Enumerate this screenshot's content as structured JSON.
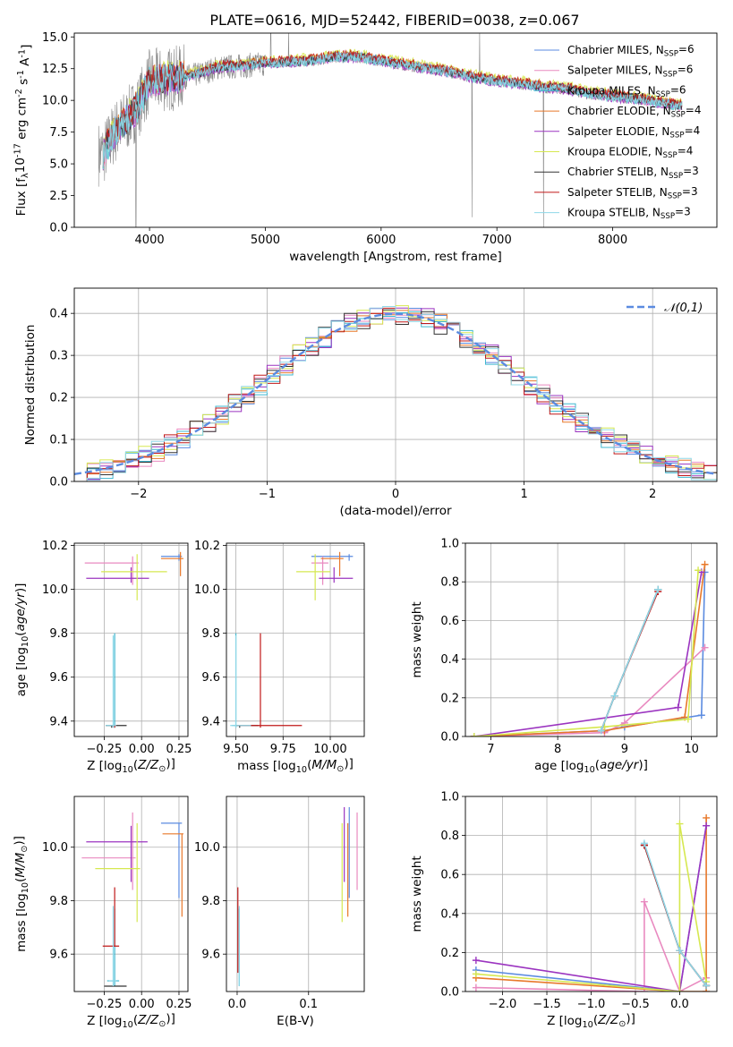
{
  "title": "PLATE=0616, MJD=52442, FIBERID=0038, z=0.067",
  "models": [
    {
      "name": "Chabrier MILES, N$_{SSP}$=6",
      "color": "#5b8be0"
    },
    {
      "name": "Salpeter MILES, N$_{SSP}$=6",
      "color": "#e98ac0"
    },
    {
      "name": "Kroupa MILES, N$_{SSP}$=6",
      "color": "#3fb8d0"
    },
    {
      "name": "Chabrier ELODIE, N$_{SSP}$=4",
      "color": "#e8782a"
    },
    {
      "name": "Salpeter ELODIE, N$_{SSP}$=4",
      "color": "#9b34c0"
    },
    {
      "name": "Kroupa ELODIE, N$_{SSP}$=4",
      "color": "#d6e850"
    },
    {
      "name": "Chabrier STELIB, N$_{SSP}$=3",
      "color": "#333333"
    },
    {
      "name": "Salpeter STELIB, N$_{SSP}$=3",
      "color": "#c01818"
    },
    {
      "name": "Kroupa STELIB, N$_{SSP}$=3",
      "color": "#8fd8e8"
    }
  ],
  "chart_data": [
    {
      "type": "line",
      "xlabel": "wavelength [Angstrom, rest frame]",
      "ylabel": "Flux [f$_\\lambda$10$^{-17}$ erg cm$^{-2}$ s$^{-1}$ A$^{-1}$]",
      "xlim": [
        3350,
        8900
      ],
      "ylim": [
        0,
        15.3
      ],
      "xticks": [
        4000,
        5000,
        6000,
        7000,
        8000
      ],
      "yticks": [
        0.0,
        2.5,
        5.0,
        7.5,
        10.0,
        12.5,
        15.0
      ],
      "legend": "top-right",
      "data_color": "#888888",
      "model_color": "#6cd4d8",
      "continuum_x": [
        3600,
        3700,
        3800,
        3900,
        4000,
        4200,
        4400,
        4600,
        4800,
        5000,
        5200,
        5400,
        5600,
        5800,
        6000,
        6200,
        6400,
        6600,
        6800,
        7000,
        7200,
        7400,
        7600,
        7800,
        8000,
        8200,
        8400,
        8600
      ],
      "continuum_y": [
        5.8,
        7.5,
        8.4,
        9.5,
        11.5,
        11.7,
        12.0,
        12.6,
        12.7,
        12.9,
        13.0,
        13.1,
        13.4,
        13.4,
        13.1,
        12.8,
        12.5,
        12.2,
        11.8,
        11.5,
        11.3,
        11.0,
        10.9,
        10.5,
        10.3,
        10.1,
        9.8,
        9.5
      ]
    },
    {
      "type": "line",
      "xlabel": "(data-model)/error",
      "ylabel": "Normed distribution",
      "xlim": [
        -2.5,
        2.5
      ],
      "ylim": [
        0,
        0.46
      ],
      "xticks": [
        -2,
        -1,
        0,
        1,
        2
      ],
      "yticks": [
        0.0,
        0.1,
        0.2,
        0.3,
        0.4
      ],
      "legend": "top-right",
      "legend_label": "$\\mathcal{N}(0,1)$",
      "bin_width": 0.1,
      "hist_color_order": [
        0,
        1,
        2,
        3,
        4,
        5,
        6,
        7,
        8
      ],
      "reference": "N(0,1) dashed"
    },
    {
      "type": "scatter",
      "xlabel": "Z [log$_{10}$($Z/Z_\\odot$)]",
      "ylabel": "age  [log$_{10}$($age/yr$)]",
      "xlim": [
        -0.45,
        0.31
      ],
      "ylim": [
        9.33,
        10.21
      ],
      "xticks": [
        -0.25,
        0.0,
        0.25
      ],
      "xticklabels": [
        "−0.25",
        "0.00",
        "0.25"
      ],
      "yticks": [
        9.4,
        9.6,
        9.8,
        10.0,
        10.2
      ],
      "points": [
        {
          "m": 0,
          "x": 0.25,
          "y": 10.15,
          "xerr": [
            0.12,
            0.02
          ],
          "yerr": [
            0.02,
            0.01
          ]
        },
        {
          "m": 1,
          "x": -0.06,
          "y": 10.12,
          "xerr": [
            0.32,
            0.04
          ],
          "yerr": [
            0.1,
            0.03
          ]
        },
        {
          "m": 2,
          "x": -0.18,
          "y": 9.38,
          "xerr": [
            0.02,
            0.01
          ],
          "yerr": [
            0.01,
            0.42
          ]
        },
        {
          "m": 3,
          "x": 0.26,
          "y": 10.14,
          "xerr": [
            0.13,
            0.02
          ],
          "yerr": [
            0.08,
            0.03
          ]
        },
        {
          "m": 4,
          "x": -0.07,
          "y": 10.05,
          "xerr": [
            0.3,
            0.12
          ],
          "yerr": [
            0.02,
            0.05
          ]
        },
        {
          "m": 5,
          "x": -0.03,
          "y": 10.08,
          "xerr": [
            0.24,
            0.2
          ],
          "yerr": [
            0.13,
            0.08
          ]
        },
        {
          "m": 6,
          "x": -0.2,
          "y": 9.38,
          "xerr": [
            0.04,
            0.1
          ],
          "yerr": [
            0.01,
            0.0
          ]
        },
        {
          "m": 7,
          "x": -0.18,
          "y": 9.38,
          "xerr": [
            0.02,
            0.01
          ],
          "yerr": [
            0.01,
            0.0
          ]
        },
        {
          "m": 8,
          "x": -0.19,
          "y": 9.38,
          "xerr": [
            0.05,
            0.02
          ],
          "yerr": [
            0.01,
            0.41
          ]
        }
      ]
    },
    {
      "type": "scatter",
      "xlabel": "mass [log$_{10}$($M/M_\\odot$)]",
      "ylabel": "",
      "xlim": [
        9.45,
        10.18
      ],
      "ylim": [
        9.33,
        10.21
      ],
      "xticks": [
        9.5,
        9.75,
        10.0
      ],
      "xticklabels": [
        "9.50",
        "9.75",
        "10.00"
      ],
      "yticks": [
        9.4,
        9.6,
        9.8,
        10.0,
        10.2
      ],
      "points": [
        {
          "m": 0,
          "x": 10.1,
          "y": 10.15,
          "xerr": [
            0.2,
            0.02
          ],
          "yerr": [
            0.02,
            0.01
          ]
        },
        {
          "m": 1,
          "x": 9.96,
          "y": 10.12,
          "xerr": [
            0.06,
            0.03
          ],
          "yerr": [
            0.1,
            0.03
          ]
        },
        {
          "m": 2,
          "x": 9.5,
          "y": 9.38,
          "xerr": [
            0.02,
            0.01
          ],
          "yerr": [
            0.01,
            0.42
          ]
        },
        {
          "m": 3,
          "x": 10.05,
          "y": 10.14,
          "xerr": [
            0.1,
            0.02
          ],
          "yerr": [
            0.08,
            0.03
          ]
        },
        {
          "m": 4,
          "x": 10.02,
          "y": 10.05,
          "xerr": [
            0.08,
            0.1
          ],
          "yerr": [
            0.02,
            0.05
          ]
        },
        {
          "m": 5,
          "x": 9.92,
          "y": 10.08,
          "xerr": [
            0.1,
            0.08
          ],
          "yerr": [
            0.13,
            0.08
          ]
        },
        {
          "m": 6,
          "x": 9.52,
          "y": 9.38,
          "xerr": [
            0.02,
            0.1
          ],
          "yerr": [
            0.01,
            0.0
          ]
        },
        {
          "m": 7,
          "x": 9.63,
          "y": 9.38,
          "xerr": [
            0.13,
            0.22
          ],
          "yerr": [
            0.01,
            0.42
          ]
        },
        {
          "m": 8,
          "x": 9.5,
          "y": 9.38,
          "xerr": [
            0.03,
            0.08
          ],
          "yerr": [
            0.01,
            0.41
          ]
        }
      ]
    },
    {
      "type": "line",
      "xlabel": "age  [log$_{10}$($age/yr$)]",
      "ylabel": "mass weight",
      "xlim": [
        6.62,
        10.38
      ],
      "ylim": [
        0,
        1.0
      ],
      "xticks": [
        7,
        8,
        9,
        10
      ],
      "yticks": [
        0.0,
        0.2,
        0.4,
        0.6,
        0.8,
        1.0
      ],
      "series": [
        {
          "m": 0,
          "x": [
            6.75,
            8.7,
            9.0,
            10.15,
            10.2
          ],
          "y": [
            0.0,
            0.03,
            0.05,
            0.11,
            0.85
          ]
        },
        {
          "m": 1,
          "x": [
            6.75,
            8.7,
            9.0,
            10.2
          ],
          "y": [
            0.0,
            0.02,
            0.07,
            0.46
          ]
        },
        {
          "m": 2,
          "x": [
            8.65,
            8.85,
            9.5
          ],
          "y": [
            0.03,
            0.21,
            0.76
          ]
        },
        {
          "m": 3,
          "x": [
            6.75,
            8.7,
            9.9,
            10.2
          ],
          "y": [
            0.0,
            0.03,
            0.1,
            0.89
          ]
        },
        {
          "m": 4,
          "x": [
            6.75,
            9.8,
            10.15
          ],
          "y": [
            0.0,
            0.15,
            0.85
          ]
        },
        {
          "m": 5,
          "x": [
            6.75,
            8.7,
            9.95,
            10.1
          ],
          "y": [
            0.0,
            0.05,
            0.09,
            0.86
          ]
        },
        {
          "m": 6,
          "x": [
            8.65,
            8.85,
            9.5
          ],
          "y": [
            0.03,
            0.21,
            0.76
          ]
        },
        {
          "m": 7,
          "x": [
            8.65,
            8.85,
            9.5
          ],
          "y": [
            0.03,
            0.21,
            0.75
          ]
        },
        {
          "m": 8,
          "x": [
            8.65,
            8.85,
            9.5
          ],
          "y": [
            0.03,
            0.21,
            0.76
          ]
        }
      ]
    },
    {
      "type": "scatter",
      "xlabel": "Z [log$_{10}$($Z/Z_\\odot$)]",
      "ylabel": "mass [log$_{10}$($M/M_\\odot$)]",
      "xlim": [
        -0.45,
        0.31
      ],
      "ylim": [
        9.46,
        10.19
      ],
      "xticks": [
        -0.25,
        0.0,
        0.25
      ],
      "xticklabels": [
        "−0.25",
        "0.00",
        "0.25"
      ],
      "yticks": [
        9.6,
        9.8,
        10.0
      ],
      "points": [
        {
          "m": 0,
          "x": 0.25,
          "y": 10.09,
          "xerr": [
            0.12,
            0.02
          ],
          "yerr": [
            0.28,
            0.0
          ]
        },
        {
          "m": 1,
          "x": -0.06,
          "y": 9.96,
          "xerr": [
            0.34,
            0.02
          ],
          "yerr": [
            0.12,
            0.17
          ]
        },
        {
          "m": 2,
          "x": -0.18,
          "y": 9.5,
          "xerr": [
            0.05,
            0.03
          ],
          "yerr": [
            0.02,
            0.27
          ]
        },
        {
          "m": 3,
          "x": 0.27,
          "y": 10.05,
          "xerr": [
            0.13,
            0.01
          ],
          "yerr": [
            0.31,
            0.0
          ]
        },
        {
          "m": 4,
          "x": -0.07,
          "y": 10.02,
          "xerr": [
            0.3,
            0.11
          ],
          "yerr": [
            0.15,
            0.06
          ]
        },
        {
          "m": 5,
          "x": -0.03,
          "y": 9.92,
          "xerr": [
            0.28,
            0.02
          ],
          "yerr": [
            0.2,
            0.17
          ]
        },
        {
          "m": 6,
          "x": -0.2,
          "y": 9.48,
          "xerr": [
            0.05,
            0.1
          ],
          "yerr": [
            0.0,
            0.0
          ]
        },
        {
          "m": 7,
          "x": -0.18,
          "y": 9.63,
          "xerr": [
            0.08,
            0.03
          ],
          "yerr": [
            0.0,
            0.22
          ]
        },
        {
          "m": 8,
          "x": -0.19,
          "y": 9.5,
          "xerr": [
            0.03,
            0.02
          ],
          "yerr": [
            0.02,
            0.28
          ]
        }
      ]
    },
    {
      "type": "scatter",
      "xlabel": "E(B-V)",
      "ylabel": "",
      "xlim": [
        -0.015,
        0.178
      ],
      "ylim": [
        9.46,
        10.19
      ],
      "xticks": [
        0.0,
        0.1
      ],
      "xticklabels": [
        "0.0",
        "0.1"
      ],
      "yticks": [
        9.6,
        9.8,
        10.0
      ],
      "points": [
        {
          "m": 0,
          "x": 0.157,
          "y": 10.09,
          "xerr": [
            0,
            0
          ],
          "yerr": [
            0.28,
            0.06
          ]
        },
        {
          "m": 1,
          "x": 0.168,
          "y": 9.96,
          "xerr": [
            0,
            0
          ],
          "yerr": [
            0.12,
            0.17
          ]
        },
        {
          "m": 2,
          "x": 0.003,
          "y": 9.5,
          "xerr": [
            0,
            0
          ],
          "yerr": [
            0.02,
            0.27
          ]
        },
        {
          "m": 3,
          "x": 0.155,
          "y": 10.05,
          "xerr": [
            0,
            0
          ],
          "yerr": [
            0.31,
            0.04
          ]
        },
        {
          "m": 4,
          "x": 0.15,
          "y": 10.02,
          "xerr": [
            0,
            0
          ],
          "yerr": [
            0.15,
            0.13
          ]
        },
        {
          "m": 5,
          "x": 0.147,
          "y": 9.92,
          "xerr": [
            0,
            0
          ],
          "yerr": [
            0.2,
            0.17
          ]
        },
        {
          "m": 6,
          "x": 0.002,
          "y": 9.48,
          "xerr": [
            0,
            0
          ],
          "yerr": [
            0.0,
            0.0
          ]
        },
        {
          "m": 7,
          "x": 0.001,
          "y": 9.63,
          "xerr": [
            0,
            0
          ],
          "yerr": [
            0.1,
            0.22
          ]
        },
        {
          "m": 8,
          "x": 0.003,
          "y": 9.5,
          "xerr": [
            0,
            0
          ],
          "yerr": [
            0.02,
            0.28
          ]
        }
      ]
    },
    {
      "type": "line",
      "xlabel": "Z [log$_{10}$($Z/Z_\\odot$)]",
      "ylabel": "mass weight",
      "xlim": [
        -2.42,
        0.42
      ],
      "ylim": [
        0,
        1.0
      ],
      "xticks": [
        -2.0,
        -1.5,
        -1.0,
        -0.5,
        0.0
      ],
      "xticklabels": [
        "−2.0",
        "−1.5",
        "−1.0",
        "−0.5",
        "0.0"
      ],
      "yticks": [
        0.0,
        0.2,
        0.4,
        0.6,
        0.8,
        1.0
      ],
      "series": [
        {
          "m": 0,
          "x": [
            -2.3,
            0.0,
            0.3
          ],
          "y": [
            0.11,
            0.0,
            0.85
          ]
        },
        {
          "m": 1,
          "x": [
            -2.3,
            -0.4,
            -0.4,
            0.0,
            0.3
          ],
          "y": [
            0.02,
            0.0,
            0.46,
            0.0,
            0.07
          ]
        },
        {
          "m": 2,
          "x": [
            -0.4,
            0.0,
            0.3
          ],
          "y": [
            0.75,
            0.21,
            0.03
          ]
        },
        {
          "m": 3,
          "x": [
            -2.3,
            0.0,
            0.3,
            0.3
          ],
          "y": [
            0.07,
            0.0,
            0.0,
            0.89
          ]
        },
        {
          "m": 4,
          "x": [
            -2.3,
            0.0,
            0.3
          ],
          "y": [
            0.16,
            0.0,
            0.85
          ]
        },
        {
          "m": 5,
          "x": [
            -2.3,
            0.0,
            0.0,
            0.3
          ],
          "y": [
            0.09,
            0.0,
            0.86,
            0.05
          ]
        },
        {
          "m": 6,
          "x": [
            -0.4,
            0.0,
            0.3
          ],
          "y": [
            0.75,
            0.21,
            0.03
          ]
        },
        {
          "m": 7,
          "x": [
            -0.4,
            0.0,
            0.3
          ],
          "y": [
            0.75,
            0.21,
            0.03
          ]
        },
        {
          "m": 8,
          "x": [
            -0.4,
            0.0,
            0.3
          ],
          "y": [
            0.76,
            0.21,
            0.03
          ]
        }
      ]
    }
  ]
}
